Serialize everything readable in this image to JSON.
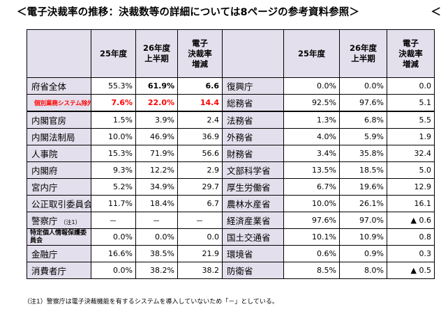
{
  "title": "＜電子決裁率の推移：決裁数等の詳細については8ページの参考資料参照＞",
  "edge_text": "＜",
  "headers": {
    "y25": "25年度",
    "y26_line1": "26年度",
    "y26_line2": "上半期",
    "rate_line1": "電子",
    "rate_line2": "決裁率",
    "rate_line3": "増減"
  },
  "rows": [
    {
      "left": {
        "name": "府省全体",
        "y25": "55.3%",
        "y26": "61.9%",
        "diff": "6.6"
      },
      "right": {
        "name": "復興庁",
        "y25": "0.0%",
        "y26": "0.0%",
        "diff": "0.0"
      }
    },
    {
      "left": {
        "name": "個別業務システム除外",
        "y25": "7.6%",
        "y26": "22.0%",
        "diff": "14.4"
      },
      "right": {
        "name": "総務省",
        "y25": "92.5%",
        "y26": "97.6%",
        "diff": "5.1"
      }
    },
    {
      "left": {
        "name": "内閣官房",
        "y25": "1.5%",
        "y26": "3.9%",
        "diff": "2.4"
      },
      "right": {
        "name": "法務省",
        "y25": "1.3%",
        "y26": "6.8%",
        "diff": "5.5"
      }
    },
    {
      "left": {
        "name": "内閣法制局",
        "y25": "10.0%",
        "y26": "46.9%",
        "diff": "36.9"
      },
      "right": {
        "name": "外務省",
        "y25": "4.0%",
        "y26": "5.9%",
        "diff": "1.9"
      }
    },
    {
      "left": {
        "name": "人事院",
        "y25": "15.3%",
        "y26": "71.9%",
        "diff": "56.6"
      },
      "right": {
        "name": "財務省",
        "y25": "3.4%",
        "y26": "35.8%",
        "diff": "32.4"
      }
    },
    {
      "left": {
        "name": "内閣府",
        "y25": "9.3%",
        "y26": "12.2%",
        "diff": "2.9"
      },
      "right": {
        "name": "文部科学省",
        "y25": "13.5%",
        "y26": "18.5%",
        "diff": "5.0"
      }
    },
    {
      "left": {
        "name": "宮内庁",
        "y25": "5.2%",
        "y26": "34.9%",
        "diff": "29.7"
      },
      "right": {
        "name": "厚生労働省",
        "y25": "6.7%",
        "y26": "19.6%",
        "diff": "12.9"
      }
    },
    {
      "left": {
        "name": "公正取引委員会",
        "y25": "11.7%",
        "y26": "18.4%",
        "diff": "6.7"
      },
      "right": {
        "name": "農林水産省",
        "y25": "10.0%",
        "y26": "26.1%",
        "diff": "16.1"
      }
    },
    {
      "left": {
        "name": "警察庁",
        "note": "（注1）",
        "y25": "－",
        "y26": "－",
        "diff": "－"
      },
      "right": {
        "name": "経済産業省",
        "y25": "97.6%",
        "y26": "97.0%",
        "diff": "▲ 0.6"
      }
    },
    {
      "left": {
        "name": "特定個人情報保護委員会",
        "y25": "0.0%",
        "y26": "0.0%",
        "diff": "0.0"
      },
      "right": {
        "name": "国土交通省",
        "y25": "10.1%",
        "y26": "10.9%",
        "diff": "0.8"
      }
    },
    {
      "left": {
        "name": "金融庁",
        "y25": "16.6%",
        "y26": "38.5%",
        "diff": "21.9"
      },
      "right": {
        "name": "環境省",
        "y25": "0.6%",
        "y26": "0.9%",
        "diff": "0.3"
      }
    },
    {
      "left": {
        "name": "消費者庁",
        "y25": "0.0%",
        "y26": "38.2%",
        "diff": "38.2"
      },
      "right": {
        "name": "防衛省",
        "y25": "8.5%",
        "y26": "8.0%",
        "diff": "▲ 0.5"
      }
    }
  ],
  "footnote": "（注1）警察庁は電子決裁機能を有するシステムを導入していないため「－」としている。"
}
